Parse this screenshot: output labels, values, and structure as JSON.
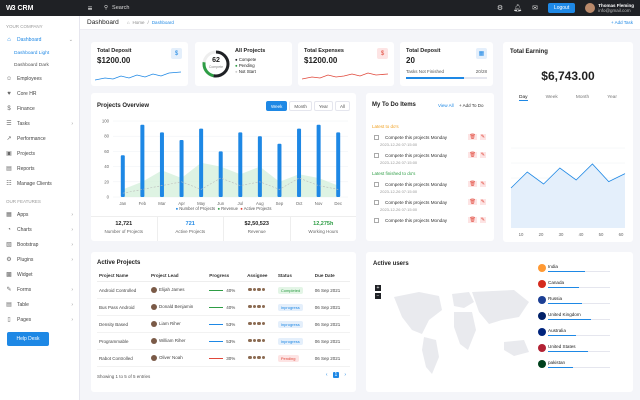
{
  "app": {
    "logo_mark": "W3",
    "logo_text": "CRM"
  },
  "topbar": {
    "search_label": "Search",
    "logout_label": "Logout",
    "user_name": "Thomas Fleming",
    "user_email": "info@gmail.com"
  },
  "sidebar": {
    "section1": "YOUR COMPANY",
    "dashboard": "Dashboard",
    "sub1": "Dashboard Light",
    "sub2": "Dashboard Dark",
    "items": [
      "Employees",
      "Core HR",
      "Finance",
      "Tasks",
      "Performance",
      "Projects",
      "Reports",
      "Manage Clients"
    ],
    "section2": "OUR FEATURES",
    "features": [
      "Apps",
      "Charts",
      "Bootstrap",
      "Plugins",
      "Widget",
      "Forms",
      "Table",
      "Pages"
    ],
    "helpdesk": "Help Desk"
  },
  "header": {
    "title": "Dashboard",
    "crumb_home": "Home",
    "crumb_sep": "/",
    "crumb_current": "Dashboard",
    "add_task": "+ Add Task"
  },
  "stats": {
    "deposit_title": "Total Deposit",
    "deposit_value": "$1200.00",
    "projects_title": "All Projects",
    "projects_center": "62",
    "projects_center_label": "Compete",
    "projects_legend": [
      "Compete",
      "Pending",
      "Not Start"
    ],
    "expenses_title": "Total Expenses",
    "expenses_value": "$1200.00",
    "deposit2_title": "Total Deposit",
    "deposit2_value": "20",
    "deposit2_label": "Tasks Not Finished",
    "deposit2_count": "20/28",
    "deposit2_progress": 0.71
  },
  "overview": {
    "title": "Projects Overview",
    "tabs": [
      "Week",
      "Month",
      "Year",
      "All"
    ],
    "legend": [
      "Number of Projects",
      "Revenue",
      "Active Projects"
    ],
    "summary": [
      {
        "value": "12,721",
        "label": "Number of Projects"
      },
      {
        "value": "721",
        "label": "Active Projects"
      },
      {
        "value": "$2,50,523",
        "label": "Revenue"
      },
      {
        "value": "12,275h",
        "label": "Working Hours"
      }
    ]
  },
  "chart_data": {
    "type": "bar",
    "categories": [
      "Jan",
      "Feb",
      "Mar",
      "Apr",
      "May",
      "Jun",
      "Jul",
      "Aug",
      "Sep",
      "Oct",
      "Nov",
      "Dec"
    ],
    "series": [
      {
        "name": "Number of Projects",
        "values": [
          55,
          95,
          85,
          75,
          90,
          60,
          85,
          80,
          70,
          90,
          95,
          85
        ]
      },
      {
        "name": "Revenue",
        "values": [
          10,
          20,
          35,
          25,
          45,
          40,
          30,
          40,
          20,
          30,
          25,
          15
        ]
      },
      {
        "name": "Active Projects",
        "values": [
          5,
          10,
          15,
          20,
          10,
          25,
          15,
          20,
          10,
          25,
          15,
          10
        ]
      }
    ],
    "ylim": [
      0,
      100
    ],
    "yticks": [
      0,
      20,
      40,
      60,
      80,
      100
    ]
  },
  "todo": {
    "title": "My To Do Items",
    "view_all": "View All",
    "add": "+ Add To Do",
    "latest": "Latest to do's",
    "finished": "Latest finished to do's",
    "items": [
      "Compete this projects Monday",
      "Compete this projects Monday",
      "Compete this projects Monday",
      "Compete this projects Monday",
      "Compete this projects Monday"
    ],
    "dates": [
      "2023-12-26 07:15:00",
      "2023-12-26 07:15:00",
      "2023-12-26 07:15:00",
      "2023-12-26 07:15:00"
    ]
  },
  "earning": {
    "title": "Total Earning",
    "value": "$6,743.00",
    "tabs": [
      "Day",
      "Week",
      "Month",
      "Year"
    ],
    "x": [
      "10",
      "20",
      "30",
      "40",
      "50",
      "60"
    ],
    "line": [
      50,
      70,
      55,
      75,
      60,
      80,
      58,
      68
    ]
  },
  "active_projects": {
    "title": "Active Projects",
    "headers": [
      "Project Name",
      "Project Lead",
      "Progress",
      "Assignee",
      "Status",
      "Due Date"
    ],
    "rows": [
      {
        "name": "Android Controlled",
        "lead": "Elijah James",
        "progress": "40%",
        "status": "Completed",
        "status_key": "completed",
        "due": "06 Sep 2021",
        "bar": "#2e9d45"
      },
      {
        "name": "Bus Pass Android",
        "lead": "Donald Benjamin",
        "progress": "40%",
        "status": "Inprogress",
        "status_key": "inprogress",
        "due": "06 Sep 2021",
        "bar": "#2e9d45"
      },
      {
        "name": "Density Based",
        "lead": "Liam Riher",
        "progress": "53%",
        "status": "Inprogress",
        "status_key": "inprogress",
        "due": "06 Sep 2021",
        "bar": "#1e88e5"
      },
      {
        "name": "Programmable",
        "lead": "William Riher",
        "progress": "53%",
        "status": "Inprogress",
        "status_key": "inprogress",
        "due": "06 Sep 2021",
        "bar": "#1e88e5"
      },
      {
        "name": "Rabot Controlled",
        "lead": "Oliver Noah",
        "progress": "30%",
        "status": "Pending",
        "status_key": "pending",
        "due": "06 Sep 2021",
        "bar": "#e0473a"
      }
    ],
    "footer": "Showing 1 to 5 of 5 entries",
    "page": "1"
  },
  "active_users": {
    "title": "Active users",
    "countries": [
      {
        "name": "India",
        "value": 0.6,
        "color": "#ff9933"
      },
      {
        "name": "Canada",
        "value": 0.5,
        "color": "#d52b1e"
      },
      {
        "name": "Russia",
        "value": 0.55,
        "color": "#1c3f94"
      },
      {
        "name": "United Kingdom",
        "value": 0.7,
        "color": "#012169"
      },
      {
        "name": "Australia",
        "value": 0.45,
        "color": "#00247d"
      },
      {
        "name": "United States",
        "value": 0.65,
        "color": "#b22234"
      },
      {
        "name": "pakistan",
        "value": 0.4,
        "color": "#01411c"
      }
    ]
  }
}
